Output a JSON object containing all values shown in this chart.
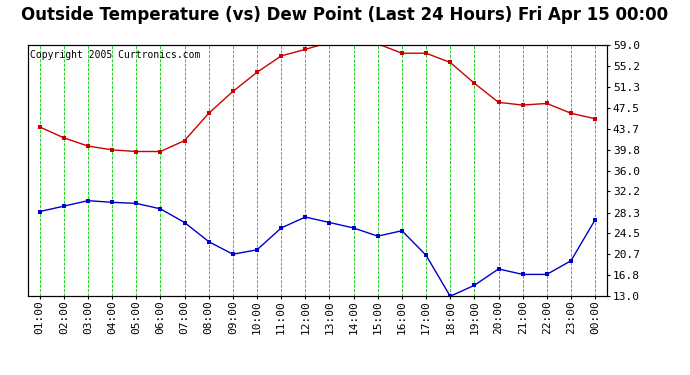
{
  "title": "Outside Temperature (vs) Dew Point (Last 24 Hours) Fri Apr 15 00:00",
  "copyright": "Copyright 2005 Curtronics.com",
  "x_labels": [
    "01:00",
    "02:00",
    "03:00",
    "04:00",
    "05:00",
    "06:00",
    "07:00",
    "08:00",
    "09:00",
    "10:00",
    "11:00",
    "12:00",
    "13:00",
    "14:00",
    "15:00",
    "16:00",
    "17:00",
    "18:00",
    "19:00",
    "20:00",
    "21:00",
    "22:00",
    "23:00",
    "00:00"
  ],
  "temp_data": [
    44.0,
    42.0,
    40.5,
    39.8,
    39.5,
    39.5,
    41.5,
    46.5,
    50.5,
    54.0,
    57.0,
    58.2,
    59.5,
    59.5,
    59.2,
    57.5,
    57.5,
    55.8,
    52.0,
    48.5,
    48.0,
    48.3,
    46.5,
    45.5
  ],
  "dew_data": [
    28.5,
    29.5,
    30.5,
    30.2,
    30.0,
    29.0,
    26.5,
    23.0,
    20.7,
    21.5,
    25.5,
    27.5,
    26.5,
    25.5,
    24.0,
    25.0,
    20.5,
    13.0,
    15.0,
    18.0,
    17.0,
    17.0,
    19.5,
    27.0
  ],
  "temp_color": "#cc0000",
  "dew_color": "#0000cc",
  "bg_color": "#ffffff",
  "plot_bg": "#ffffff",
  "grid_color": "#00cc00",
  "y_ticks": [
    13.0,
    16.8,
    20.7,
    24.5,
    28.3,
    32.2,
    36.0,
    39.8,
    43.7,
    47.5,
    51.3,
    55.2,
    59.0
  ],
  "y_min": 13.0,
  "y_max": 59.0,
  "title_fontsize": 12,
  "tick_fontsize": 8,
  "copyright_fontsize": 7
}
